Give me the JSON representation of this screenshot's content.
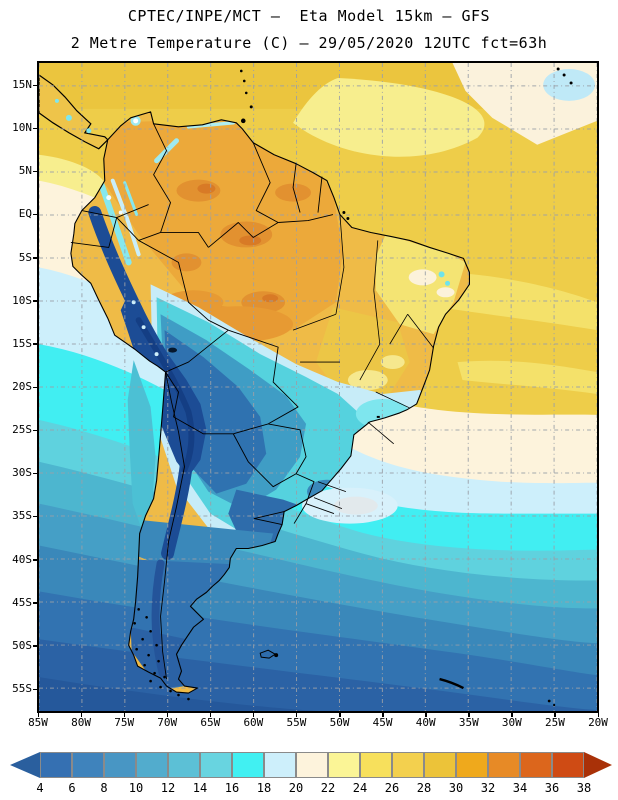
{
  "header": {
    "title_line1": "CPTEC/INPE/MCT –  Eta Model 15km – GFS",
    "title_line2": "2 Metre Temperature (C) – 29/05/2020 12UTC fct=63h"
  },
  "map": {
    "description": "Filled contour map of 2 metre temperature over South America",
    "lat_labels": [
      "15N",
      "10N",
      "5N",
      "EQ",
      "5S",
      "10S",
      "15S",
      "20S",
      "25S",
      "30S",
      "35S",
      "40S",
      "45S",
      "50S",
      "55S"
    ],
    "lon_labels": [
      "85W",
      "80W",
      "75W",
      "70W",
      "65W",
      "60W",
      "55W",
      "50W",
      "45W",
      "40W",
      "35W",
      "30W",
      "25W",
      "20W"
    ],
    "grid_color": "#9aa0a8",
    "border_color": "#000000"
  },
  "colorbar": {
    "tick_labels": [
      "4",
      "6",
      "8",
      "10",
      "12",
      "14",
      "16",
      "18",
      "20",
      "22",
      "24",
      "26",
      "28",
      "30",
      "32",
      "34",
      "36",
      "38"
    ],
    "segment_colors": [
      "#3570b2",
      "#3f83bc",
      "#4896c4",
      "#52accd",
      "#5cc0d6",
      "#68d4e0",
      "#41f0f2",
      "#cdeffb",
      "#fdf3dc",
      "#fbf596",
      "#f7e05c",
      "#f3d04e",
      "#ecc339",
      "#efa91c",
      "#e78a26",
      "#dc661c",
      "#cf4b14"
    ],
    "left_arrow_color": "#2a5f9e",
    "right_arrow_color": "#a93108",
    "units": "C"
  }
}
